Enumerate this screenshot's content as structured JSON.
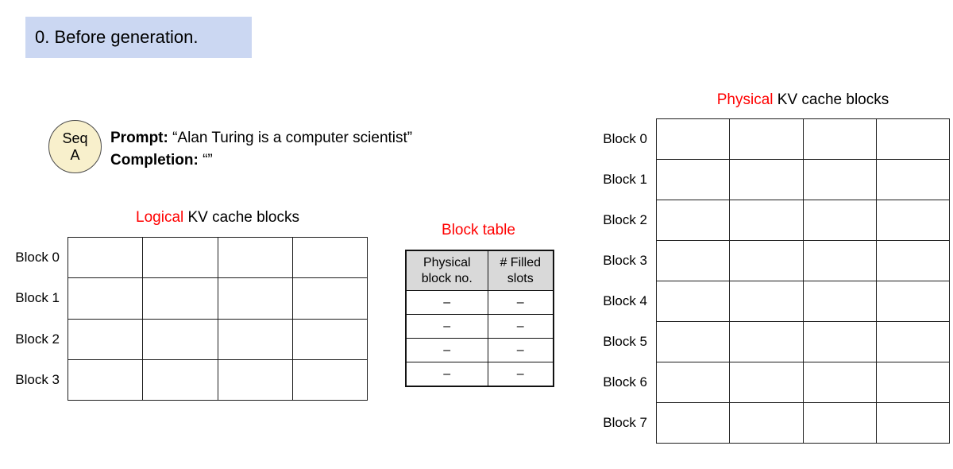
{
  "page": {
    "step_label": "0. Before generation."
  },
  "sequence": {
    "circle_line1": "Seq",
    "circle_line2": "A",
    "prompt_label": "Prompt:",
    "prompt_value": "“Alan Turing is a computer scientist”",
    "completion_label": "Completion:",
    "completion_value": "“”"
  },
  "logical_grid": {
    "title_red": "Logical",
    "title_rest": " KV cache blocks",
    "rows": 4,
    "cols": 4,
    "labels": [
      "Block 0",
      "Block 1",
      "Block 2",
      "Block 3"
    ]
  },
  "block_table": {
    "title": "Block table",
    "headers": [
      "Physical block no.",
      "# Filled slots"
    ],
    "rows": [
      [
        "–",
        "–"
      ],
      [
        "–",
        "–"
      ],
      [
        "–",
        "–"
      ],
      [
        "–",
        "–"
      ]
    ]
  },
  "physical_grid": {
    "title_red": "Physical",
    "title_rest": " KV cache blocks",
    "rows": 8,
    "cols": 4,
    "labels": [
      "Block 0",
      "Block 1",
      "Block 2",
      "Block 3",
      "Block 4",
      "Block 5",
      "Block 6",
      "Block 7"
    ]
  },
  "colors": {
    "highlight": "#cbd7f2",
    "seq_circle": "#f8f0cc",
    "table_header_bg": "#d9d9d9",
    "accent_red": "#ff0000"
  }
}
